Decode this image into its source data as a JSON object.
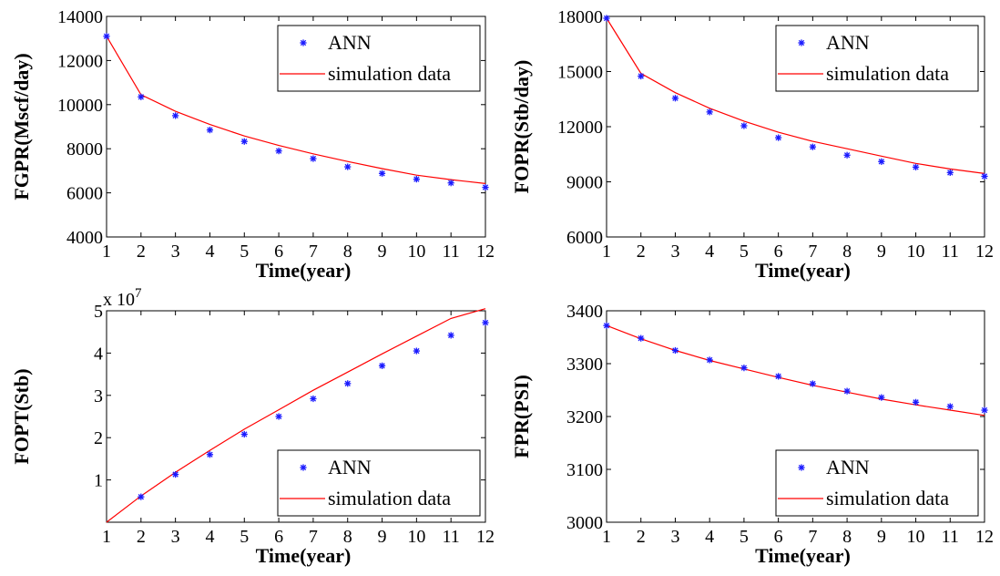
{
  "colors": {
    "ann": "#1a1aff",
    "simulation": "#ff0000",
    "axis": "#000000",
    "background": "#ffffff"
  },
  "chart_data": [
    {
      "type": "line",
      "xlabel": "Time(year)",
      "ylabel": "FGPR(Mscf/day)",
      "xlim": [
        1,
        12
      ],
      "ylim": [
        4000,
        14000
      ],
      "xticks": [
        1,
        2,
        3,
        4,
        5,
        6,
        7,
        8,
        9,
        10,
        11,
        12
      ],
      "yticks": [
        4000,
        6000,
        8000,
        10000,
        12000,
        14000
      ],
      "ytick_labels": [
        "4000",
        "6000",
        "8000",
        "10000",
        "12000",
        "14000"
      ],
      "exponent_label": "",
      "legend_position": "top-right",
      "series": [
        {
          "name": "ANN",
          "marker": "asterisk",
          "x": [
            1,
            2,
            3,
            4,
            5,
            6,
            7,
            8,
            9,
            10,
            11,
            12
          ],
          "values": [
            13100,
            10350,
            9500,
            8850,
            8330,
            7900,
            7550,
            7180,
            6880,
            6620,
            6450,
            6250
          ]
        },
        {
          "name": "simulation data",
          "style": "line",
          "x": [
            1,
            2,
            3,
            4,
            5,
            6,
            7,
            8,
            9,
            10,
            11,
            12
          ],
          "values": [
            13100,
            10450,
            9700,
            9100,
            8580,
            8150,
            7770,
            7420,
            7100,
            6800,
            6600,
            6420
          ]
        }
      ]
    },
    {
      "type": "line",
      "xlabel": "Time(year)",
      "ylabel": "FOPR(Stb/day)",
      "xlim": [
        1,
        12
      ],
      "ylim": [
        6000,
        18000
      ],
      "xticks": [
        1,
        2,
        3,
        4,
        5,
        6,
        7,
        8,
        9,
        10,
        11,
        12
      ],
      "yticks": [
        6000,
        9000,
        12000,
        15000,
        18000
      ],
      "ytick_labels": [
        "6000",
        "9000",
        "12000",
        "15000",
        "18000"
      ],
      "exponent_label": "",
      "legend_position": "top-right",
      "series": [
        {
          "name": "ANN",
          "marker": "asterisk",
          "x": [
            1,
            2,
            3,
            4,
            5,
            6,
            7,
            8,
            9,
            10,
            11,
            12
          ],
          "values": [
            17900,
            14750,
            13550,
            12800,
            12050,
            11400,
            10900,
            10450,
            10100,
            9800,
            9500,
            9300
          ]
        },
        {
          "name": "simulation data",
          "style": "line",
          "x": [
            1,
            2,
            3,
            4,
            5,
            6,
            7,
            8,
            9,
            10,
            11,
            12
          ],
          "values": [
            17900,
            14900,
            13850,
            13000,
            12300,
            11700,
            11200,
            10800,
            10400,
            10000,
            9700,
            9450
          ]
        }
      ]
    },
    {
      "type": "line",
      "xlabel": "Time(year)",
      "ylabel": "FOPT(Stb)",
      "xlim": [
        1,
        12
      ],
      "ylim": [
        0,
        5
      ],
      "xticks": [
        1,
        2,
        3,
        4,
        5,
        6,
        7,
        8,
        9,
        10,
        11,
        12
      ],
      "yticks": [
        1,
        2,
        3,
        4,
        5
      ],
      "ytick_labels": [
        "1",
        "2",
        "3",
        "4",
        "5"
      ],
      "exponent_label": "x 10",
      "exponent_power": "7",
      "legend_position": "bottom-right",
      "series": [
        {
          "name": "ANN",
          "marker": "asterisk",
          "x": [
            2,
            3,
            4,
            5,
            6,
            7,
            8,
            9,
            10,
            11,
            12
          ],
          "values": [
            0.6,
            1.13,
            1.6,
            2.08,
            2.5,
            2.92,
            3.28,
            3.7,
            4.05,
            4.42,
            4.72
          ]
        },
        {
          "name": "simulation data",
          "style": "line",
          "x": [
            1,
            2,
            3,
            4,
            5,
            6,
            7,
            8,
            9,
            10,
            11,
            12
          ],
          "values": [
            0.0,
            0.62,
            1.18,
            1.7,
            2.2,
            2.66,
            3.12,
            3.55,
            3.98,
            4.4,
            4.82,
            5.05
          ]
        }
      ]
    },
    {
      "type": "line",
      "xlabel": "Time(year)",
      "ylabel": "FPR(PSI)",
      "xlim": [
        1,
        12
      ],
      "ylim": [
        3000,
        3400
      ],
      "xticks": [
        1,
        2,
        3,
        4,
        5,
        6,
        7,
        8,
        9,
        10,
        11,
        12
      ],
      "yticks": [
        3000,
        3100,
        3200,
        3300,
        3400
      ],
      "ytick_labels": [
        "3000",
        "3100",
        "3200",
        "3300",
        "3400"
      ],
      "exponent_label": "",
      "legend_position": "bottom-right",
      "series": [
        {
          "name": "ANN",
          "marker": "asterisk",
          "x": [
            1,
            2,
            3,
            4,
            5,
            6,
            7,
            8,
            9,
            10,
            11,
            12
          ],
          "values": [
            3372,
            3348,
            3325,
            3307,
            3292,
            3276,
            3262,
            3248,
            3236,
            3227,
            3219,
            3212
          ]
        },
        {
          "name": "simulation data",
          "style": "line",
          "x": [
            1,
            2,
            3,
            4,
            5,
            6,
            7,
            8,
            9,
            10,
            11,
            12
          ],
          "values": [
            3372,
            3347,
            3325,
            3306,
            3290,
            3274,
            3259,
            3246,
            3233,
            3222,
            3212,
            3202
          ]
        }
      ]
    }
  ]
}
